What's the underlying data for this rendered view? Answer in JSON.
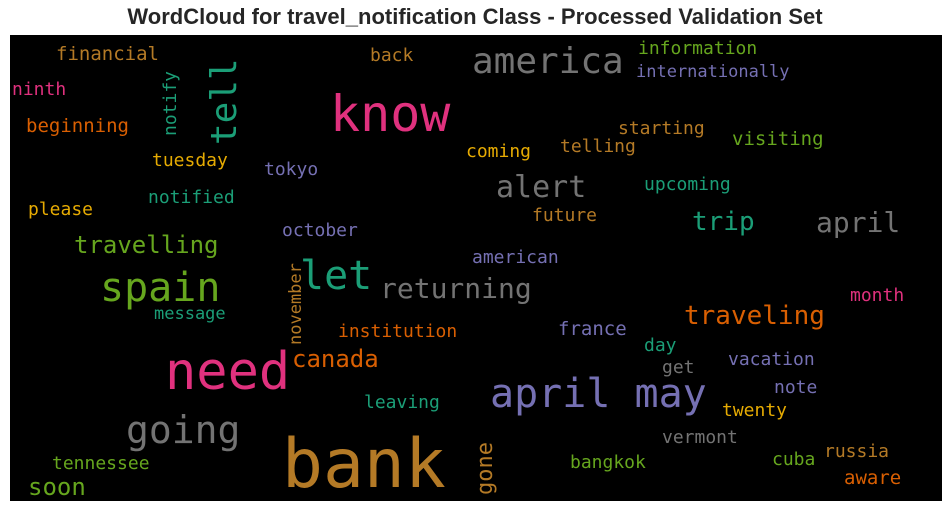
{
  "chart_data": {
    "type": "wordcloud",
    "title": "WordCloud for travel_notification Class - Processed Validation Set",
    "background": "#000000",
    "words": [
      {
        "text": "bank",
        "color": "#b47a26"
      },
      {
        "text": "need",
        "color": "#e0317e"
      },
      {
        "text": "know",
        "color": "#e0317e"
      },
      {
        "text": "april may",
        "color": "#7570b3"
      },
      {
        "text": "spain",
        "color": "#66a61e"
      },
      {
        "text": "let",
        "color": "#1b9e77"
      },
      {
        "text": "going",
        "color": "#737373"
      },
      {
        "text": "america",
        "color": "#737373"
      },
      {
        "text": "tell",
        "color": "#1b9e77"
      },
      {
        "text": "alert",
        "color": "#737373"
      },
      {
        "text": "returning",
        "color": "#737373"
      },
      {
        "text": "canada",
        "color": "#d95f02"
      },
      {
        "text": "traveling",
        "color": "#d95f02"
      },
      {
        "text": "travelling",
        "color": "#66a61e"
      },
      {
        "text": "april",
        "color": "#737373"
      },
      {
        "text": "trip",
        "color": "#1b9e77"
      },
      {
        "text": "gone",
        "color": "#b47a26"
      },
      {
        "text": "soon",
        "color": "#66a61e"
      },
      {
        "text": "notify",
        "color": "#1b9e77"
      },
      {
        "text": "november",
        "color": "#b47a26"
      },
      {
        "text": "internationally",
        "color": "#7570b3"
      },
      {
        "text": "information",
        "color": "#66a61e"
      },
      {
        "text": "financial",
        "color": "#b47a26"
      },
      {
        "text": "back",
        "color": "#b47a26"
      },
      {
        "text": "ninth",
        "color": "#e0317e"
      },
      {
        "text": "beginning",
        "color": "#d95f02"
      },
      {
        "text": "tuesday",
        "color": "#e6ab02"
      },
      {
        "text": "tokyo",
        "color": "#7570b3"
      },
      {
        "text": "starting",
        "color": "#b47a26"
      },
      {
        "text": "telling",
        "color": "#b47a26"
      },
      {
        "text": "coming",
        "color": "#e6ab02"
      },
      {
        "text": "visiting",
        "color": "#66a61e"
      },
      {
        "text": "upcoming",
        "color": "#1b9e77"
      },
      {
        "text": "notified",
        "color": "#1b9e77"
      },
      {
        "text": "please",
        "color": "#e6ab02"
      },
      {
        "text": "future",
        "color": "#b47a26"
      },
      {
        "text": "october",
        "color": "#7570b3"
      },
      {
        "text": "american",
        "color": "#7570b3"
      },
      {
        "text": "month",
        "color": "#e0317e"
      },
      {
        "text": "message",
        "color": "#1b9e77"
      },
      {
        "text": "institution",
        "color": "#d95f02"
      },
      {
        "text": "france",
        "color": "#7570b3"
      },
      {
        "text": "day",
        "color": "#1b9e77"
      },
      {
        "text": "get",
        "color": "#737373"
      },
      {
        "text": "vacation",
        "color": "#7570b3"
      },
      {
        "text": "note",
        "color": "#7570b3"
      },
      {
        "text": "leaving",
        "color": "#1b9e77"
      },
      {
        "text": "twenty",
        "color": "#e6ab02"
      },
      {
        "text": "vermont",
        "color": "#737373"
      },
      {
        "text": "tennessee",
        "color": "#66a61e"
      },
      {
        "text": "bangkok",
        "color": "#66a61e"
      },
      {
        "text": "cuba",
        "color": "#66a61e"
      },
      {
        "text": "russia",
        "color": "#b47a26"
      },
      {
        "text": "aware",
        "color": "#d95f02"
      }
    ]
  }
}
